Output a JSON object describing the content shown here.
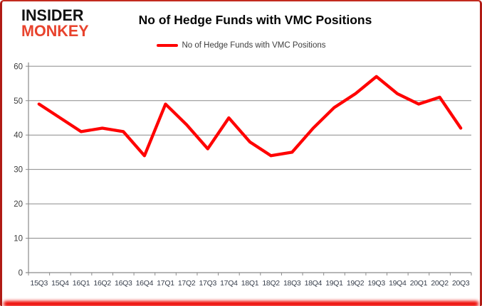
{
  "brand": {
    "line1": "INSIDER",
    "line2": "MONKEY"
  },
  "header": {
    "title": "No of Hedge Funds with VMC Positions"
  },
  "legend": {
    "label": "No of Hedge Funds with VMC Positions"
  },
  "chart_data": {
    "type": "line",
    "title": "No of Hedge Funds with VMC Positions",
    "categories": [
      "15Q3",
      "15Q4",
      "16Q1",
      "16Q2",
      "16Q3",
      "16Q4",
      "17Q1",
      "17Q2",
      "17Q3",
      "17Q4",
      "18Q1",
      "18Q2",
      "18Q3",
      "18Q4",
      "19Q1",
      "19Q2",
      "19Q3",
      "19Q4",
      "20Q1",
      "20Q2",
      "20Q3"
    ],
    "series": [
      {
        "name": "No of Hedge Funds with VMC Positions",
        "color": "#ff0000",
        "values": [
          49,
          45,
          41,
          42,
          41,
          34,
          49,
          43,
          36,
          45,
          38,
          34,
          35,
          42,
          48,
          52,
          57,
          52,
          49,
          51,
          42
        ]
      }
    ],
    "xlabel": "",
    "ylabel": "",
    "ylim": [
      0,
      60
    ],
    "yticks": [
      0,
      10,
      20,
      30,
      40,
      50,
      60
    ],
    "grid": true,
    "legend_position": "top",
    "colors": {
      "line": "#ff0000",
      "gridline": "#8a8a8a",
      "axis": "#8a8a8a",
      "tick_label": "#3d3d3d",
      "frame_border": "#b01b15",
      "bottom_glow": "#ee0400",
      "brand_red": "#e8432d"
    }
  }
}
